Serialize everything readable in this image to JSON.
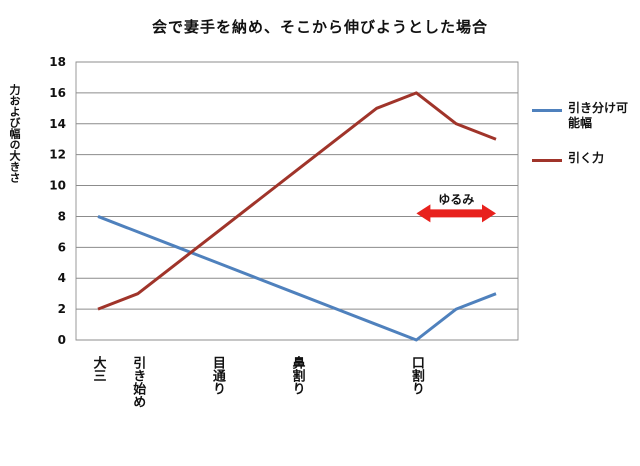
{
  "chart_data": {
    "type": "line",
    "title": "会で妻手を納め、そこから伸びようとした場合",
    "xlabel": "",
    "ylabel": "力および幅の大きさ",
    "categories": [
      "大三",
      "引き始め",
      "",
      "目通り",
      "",
      "鼻割り",
      "",
      "",
      "口割り",
      "",
      ""
    ],
    "x": [
      0,
      1,
      2,
      3,
      4,
      5,
      6,
      7,
      8,
      9,
      10
    ],
    "ylim": [
      0,
      18
    ],
    "yticks": [
      0,
      2,
      4,
      6,
      8,
      10,
      12,
      14,
      16,
      18
    ],
    "grid": true,
    "legend_position": "right",
    "series": [
      {
        "name": "引き分け可能幅",
        "color": "#4f81bd",
        "values": [
          8,
          7,
          6,
          5,
          4,
          3,
          2,
          1,
          0,
          2,
          3
        ]
      },
      {
        "name": "引く力",
        "color": "#a0342a",
        "values": [
          2,
          3,
          5,
          7,
          9,
          11,
          13,
          15,
          16,
          14,
          13
        ]
      }
    ],
    "annotations": [
      {
        "text": "ゆるみ",
        "type": "double-arrow",
        "x_from": 8,
        "x_to": 10,
        "y": 8.2,
        "color": "#e8211d"
      }
    ]
  }
}
